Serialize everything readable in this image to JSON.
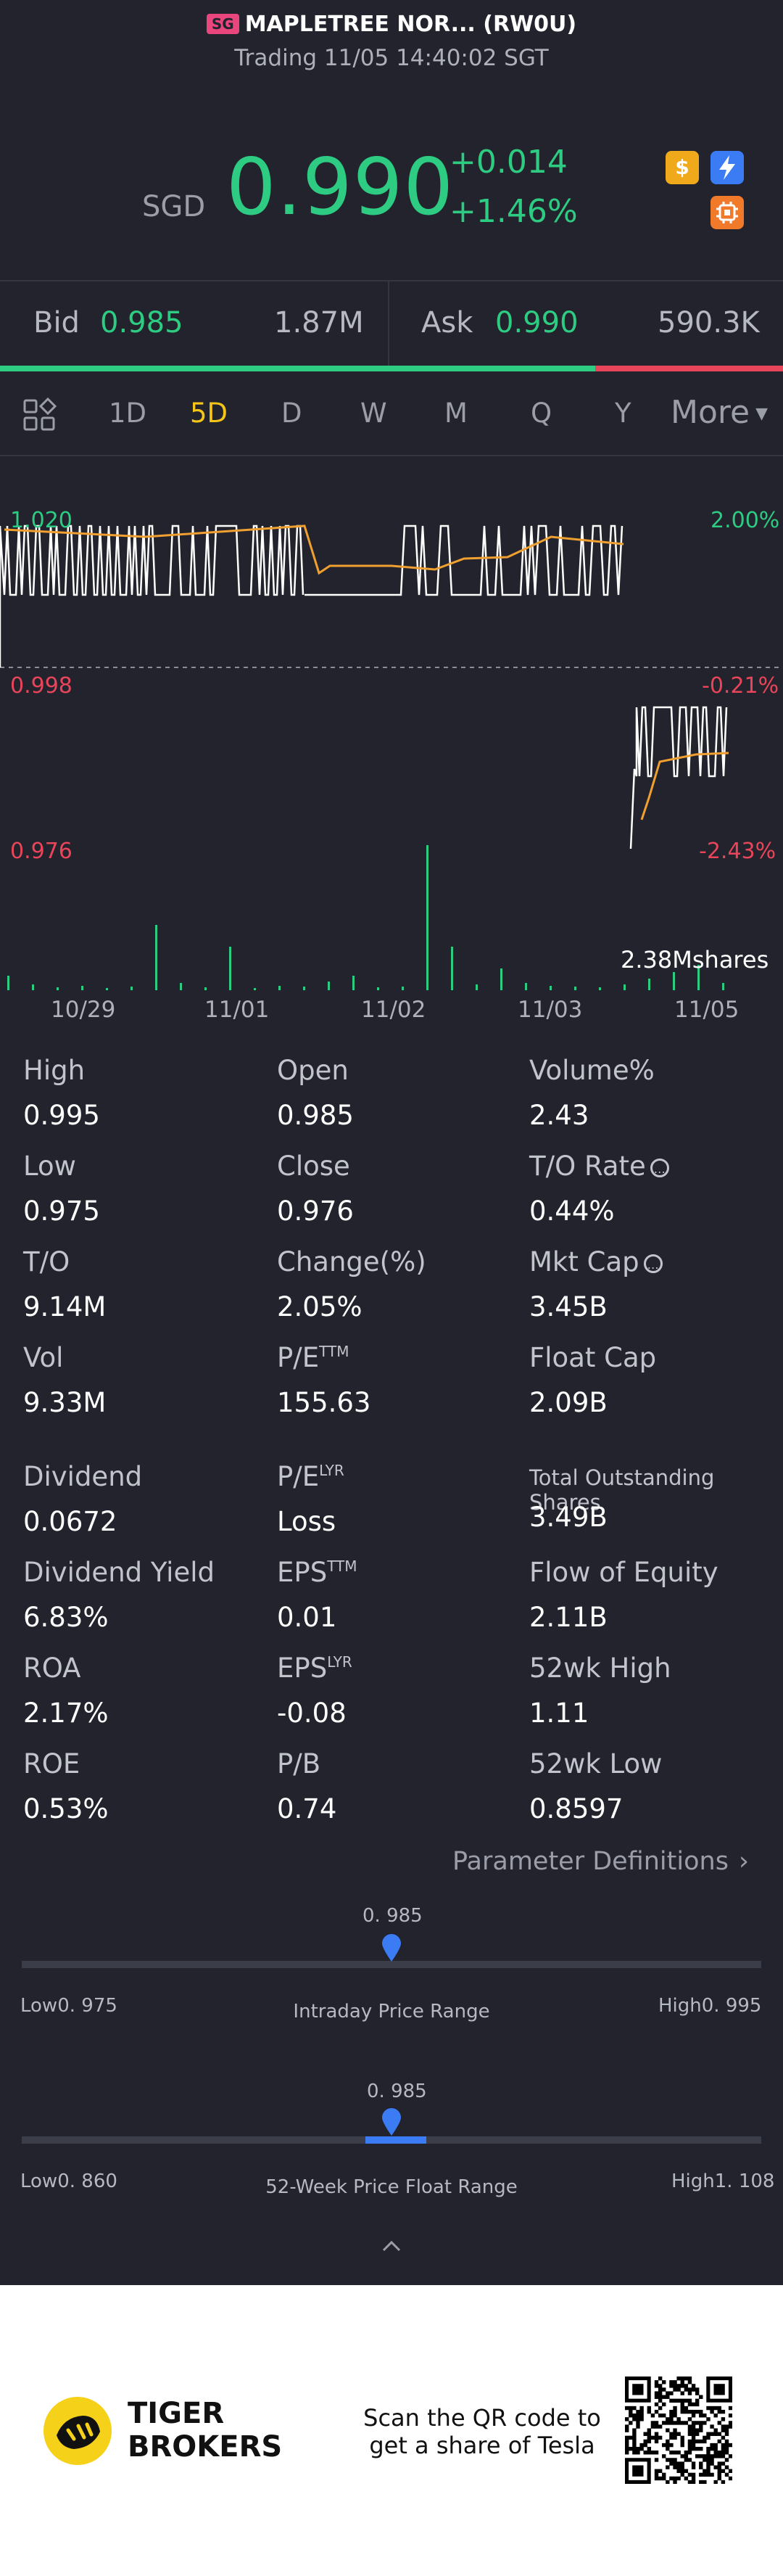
{
  "header": {
    "market_badge": "SG",
    "title": "MAPLETREE NOR... (RW0U)",
    "status": "Trading 11/05 14:40:02 SGT"
  },
  "quote": {
    "currency": "SGD",
    "price": "0.990",
    "change": "+0.014",
    "change_pct": "+1.46%",
    "icon1": "dollar-icon",
    "icon2": "lightning-icon",
    "icon3": "chip-icon"
  },
  "bidask": {
    "bid_label": "Bid",
    "bid_price": "0.985",
    "bid_size": "1.87M",
    "ask_label": "Ask",
    "ask_price": "0.990",
    "ask_size": "590.3K",
    "bid_ratio": 0.76
  },
  "tabs": {
    "items": [
      "1D",
      "5D",
      "D",
      "W",
      "M",
      "Q",
      "Y"
    ],
    "active": "5D",
    "more": "More"
  },
  "chart": {
    "left_top": "1.020",
    "mid_left": "0.998",
    "bot_left": "0.976",
    "right_top": "2.00%",
    "mid_right": "-0.21%",
    "bot_right": "-2.43%",
    "volume_label": "2.38Mshares",
    "dates": [
      "10/29",
      "11/01",
      "11/02",
      "11/03",
      "11/05"
    ]
  },
  "stats": {
    "high": {
      "label": "High",
      "value": "0.995"
    },
    "open": {
      "label": "Open",
      "value": "0.985"
    },
    "volpct": {
      "label": "Volume%",
      "value": "2.43"
    },
    "low": {
      "label": "Low",
      "value": "0.975"
    },
    "close": {
      "label": "Close",
      "value": "0.976"
    },
    "to_rate": {
      "label": "T/O Rate",
      "value": "0.44%"
    },
    "to": {
      "label": "T/O",
      "value": "9.14M"
    },
    "change": {
      "label": "Change(%)",
      "value": "2.05%"
    },
    "mktcap": {
      "label": "Mkt Cap",
      "value": "3.45B"
    },
    "vol": {
      "label": "Vol",
      "value": "9.33M"
    },
    "pe_ttm": {
      "label": "P/E",
      "sup": "TTM",
      "value": "155.63"
    },
    "floatcap": {
      "label": "Float Cap",
      "value": "2.09B"
    },
    "dividend": {
      "label": "Dividend",
      "value": "0.0672"
    },
    "pe_lyr": {
      "label": "P/E",
      "sup": "LYR",
      "value": "Loss"
    },
    "outstanding": {
      "label": "Total Outstanding Shares",
      "value": "3.49B"
    },
    "div_yield": {
      "label": "Dividend Yield",
      "value": "6.83%"
    },
    "eps_ttm": {
      "label": "EPS",
      "sup": "TTM",
      "value": "0.01"
    },
    "flow_equity": {
      "label": "Flow of Equity",
      "value": "2.11B"
    },
    "roa": {
      "label": "ROA",
      "value": "2.17%"
    },
    "eps_lyr": {
      "label": "EPS",
      "sup": "LYR",
      "value": "-0.08"
    },
    "wk52_high": {
      "label": "52wk High",
      "value": "1.11"
    },
    "roe": {
      "label": "ROE",
      "value": "0.53%"
    },
    "pb": {
      "label": "P/B",
      "value": "0.74"
    },
    "wk52_low": {
      "label": "52wk Low",
      "value": "0.8597"
    },
    "info_icon": "info-icon"
  },
  "param_link": "Parameter Definitions",
  "ranges": {
    "intraday": {
      "current": "0. 985",
      "low": "Low0. 975",
      "high": "High0. 995",
      "title": "Intraday Price Range",
      "position": 0.5
    },
    "week52": {
      "current": "0. 985",
      "low": "Low0. 860",
      "high": "High1. 108",
      "title": "52-Week Price Float Range",
      "position": 0.5
    }
  },
  "footer": {
    "brand_line1": "TIGER",
    "brand_line2": "BROKERS",
    "cta_line1": "Scan the QR code to",
    "cta_line2": "get a share of Tesla"
  },
  "colors": {
    "up": "#2ecc82",
    "down": "#e9455a",
    "active_tab": "#f5c518",
    "accent_blue": "#3b7cf5",
    "bg": "#22232c"
  }
}
